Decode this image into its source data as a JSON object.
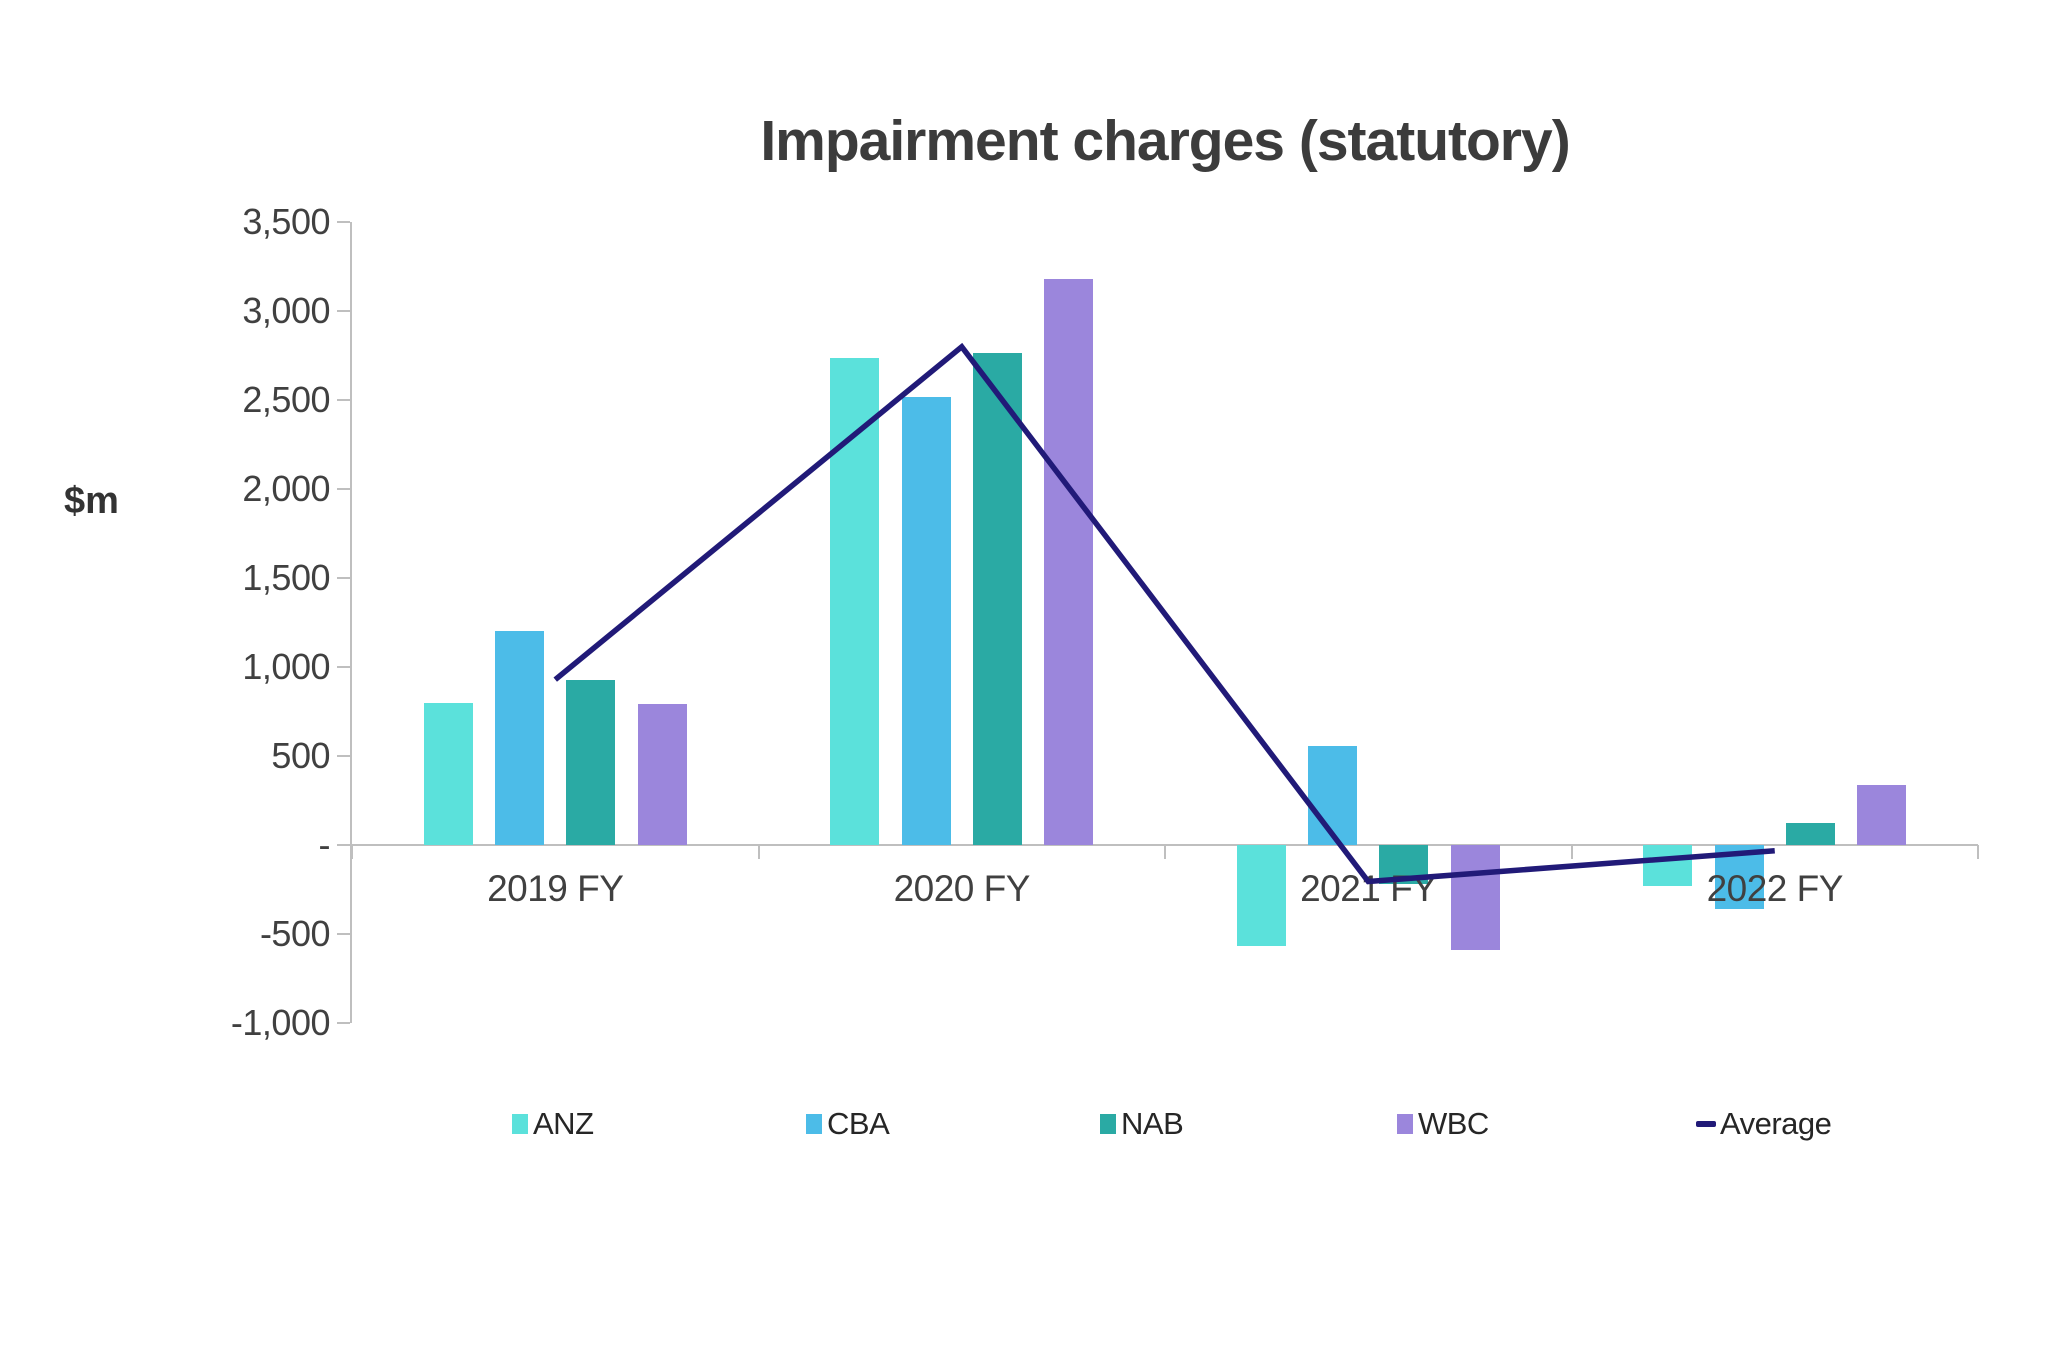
{
  "chart_data": {
    "type": "bar",
    "title": "Impairment charges (statutory)",
    "ylabel": "$m",
    "categories": [
      "2019 FY",
      "2020 FY",
      "2021 FY",
      "2022 FY"
    ],
    "series": [
      {
        "name": "ANZ",
        "color": "#5BE1DB",
        "values": [
          795,
          2738,
          -567,
          -232
        ]
      },
      {
        "name": "CBA",
        "color": "#4CBCE8",
        "values": [
          1201,
          2518,
          554,
          -357
        ]
      },
      {
        "name": "NAB",
        "color": "#2AAAA4",
        "values": [
          927,
          2762,
          -217,
          125
        ]
      },
      {
        "name": "WBC",
        "color": "#9B86DC",
        "values": [
          794,
          3178,
          -590,
          335
        ]
      }
    ],
    "line_series": {
      "name": "Average",
      "color": "#211A78",
      "values": [
        929,
        2799,
        -205,
        -32
      ]
    },
    "ylim": [
      -1000,
      3500
    ],
    "y_ticks": [
      {
        "label": "3,500",
        "value": 3500
      },
      {
        "label": "3,000",
        "value": 3000
      },
      {
        "label": "2,500",
        "value": 2500
      },
      {
        "label": "2,000",
        "value": 2000
      },
      {
        "label": "1,500",
        "value": 1500
      },
      {
        "label": "1,000",
        "value": 1000
      },
      {
        "label": "500",
        "value": 500
      },
      {
        "label": "-",
        "value": 0
      },
      {
        "label": "-500",
        "value": -500
      },
      {
        "label": "-1,000",
        "value": -1000
      }
    ],
    "grid": "zero-baseline-only",
    "legend_position": "bottom",
    "colors": {
      "axis": "#BFBFBF",
      "tick_text": "#404040",
      "title_text": "#3C3C3C",
      "legend_text": "#262626"
    }
  }
}
